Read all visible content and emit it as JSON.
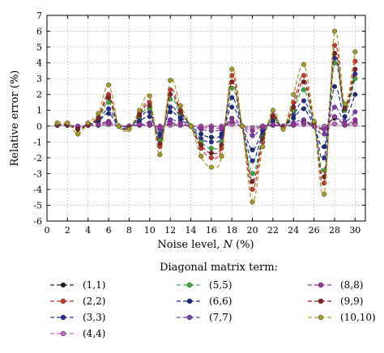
{
  "chart_data": {
    "type": "line",
    "xlabel_prefix": "Noise level, ",
    "xlabel_var": "N",
    "xlabel_suffix": " (%)",
    "ylabel": "Relative error (%)",
    "xlim": [
      0,
      31
    ],
    "ylim": [
      -6,
      7
    ],
    "xticks": [
      0,
      2,
      4,
      6,
      8,
      10,
      12,
      14,
      16,
      18,
      20,
      22,
      24,
      26,
      28,
      30
    ],
    "yticks": [
      -6,
      -5,
      -4,
      -3,
      -2,
      -1,
      0,
      1,
      2,
      3,
      4,
      5,
      6,
      7
    ],
    "legend_title": "Diagonal matrix term:",
    "x": [
      1,
      2,
      3,
      4,
      5,
      6,
      7,
      8,
      9,
      10,
      11,
      12,
      13,
      14,
      15,
      16,
      17,
      18,
      19,
      20,
      21,
      22,
      23,
      24,
      25,
      26,
      27,
      28,
      29,
      30
    ],
    "series": [
      {
        "name": "(1,1)",
        "color": "#222222",
        "values": [
          0.05,
          0.05,
          -0.05,
          0.05,
          0.05,
          0.1,
          0,
          0,
          0.05,
          0.05,
          0,
          0.1,
          0.05,
          0,
          0,
          0,
          0,
          0.2,
          0,
          -0.1,
          0,
          0.05,
          0,
          0.05,
          0.3,
          0,
          -0.1,
          0.5,
          0.1,
          0.2
        ]
      },
      {
        "name": "(2,2)",
        "color": "#d0302a",
        "values": [
          0.1,
          0.1,
          -0.2,
          0.1,
          0.6,
          2.0,
          0,
          -0.1,
          0.8,
          1.5,
          -1.3,
          2.3,
          1.0,
          0,
          -1.4,
          -2.0,
          -1.4,
          3.2,
          0,
          -4.0,
          -1.0,
          0.7,
          -0.1,
          1.5,
          3.2,
          0.2,
          -3.6,
          5.1,
          1.2,
          4.1
        ]
      },
      {
        "name": "(3,3)",
        "color": "#2a2aa0",
        "values": [
          0.1,
          0.1,
          -0.1,
          0.1,
          0.3,
          1.1,
          0,
          -0.1,
          0.5,
          0.9,
          -0.7,
          1.2,
          0.6,
          0,
          -0.8,
          -1.0,
          -0.7,
          1.8,
          0,
          -2.2,
          -0.5,
          0.4,
          0,
          0.7,
          1.6,
          0.1,
          -2.0,
          4.3,
          1.0,
          3.3
        ]
      },
      {
        "name": "(4,4)",
        "color": "#c060c0",
        "values": [
          0.05,
          0.05,
          0,
          0.05,
          0.05,
          0.1,
          0,
          0,
          0.05,
          0.05,
          0,
          0.05,
          0.05,
          0,
          0,
          0,
          0,
          0.1,
          0,
          -0.1,
          0,
          0.05,
          0,
          0.05,
          0.1,
          0,
          0,
          0.15,
          0.05,
          0.1
        ]
      },
      {
        "name": "(5,5)",
        "color": "#3aaa3a",
        "values": [
          0.1,
          0.1,
          -0.2,
          0.1,
          0.4,
          1.5,
          0,
          -0.1,
          0.6,
          1.1,
          -0.9,
          1.7,
          0.8,
          0,
          -1.0,
          -1.4,
          -1.0,
          2.4,
          0,
          -3.0,
          -0.7,
          0.5,
          -0.1,
          1.0,
          2.3,
          0.1,
          -2.8,
          4.0,
          1.0,
          3.0
        ]
      },
      {
        "name": "(6,6)",
        "color": "#1a2a7a",
        "values": [
          0.1,
          0.1,
          -0.1,
          0.1,
          0.3,
          0.8,
          0,
          0,
          0.3,
          0.6,
          -0.5,
          0.9,
          0.4,
          0,
          -0.5,
          -0.7,
          -0.5,
          1.2,
          0,
          -1.5,
          -0.3,
          0.3,
          0,
          0.5,
          1.1,
          0,
          -1.3,
          2.5,
          0.6,
          2.0
        ]
      },
      {
        "name": "(7,7)",
        "color": "#7a3ab0",
        "values": [
          0.05,
          0.05,
          -0.05,
          0.05,
          0.1,
          0.3,
          0,
          0,
          0.1,
          0.2,
          -0.2,
          0.4,
          0.2,
          0,
          -0.2,
          -0.3,
          -0.2,
          0.5,
          0,
          -0.6,
          -0.1,
          0.1,
          0,
          0.2,
          0.4,
          0,
          -0.5,
          1.2,
          0.3,
          0.9
        ]
      },
      {
        "name": "(8,8)",
        "color": "#a030a0",
        "values": [
          0.05,
          0.05,
          0,
          0.05,
          0.1,
          0.2,
          0,
          0,
          0.1,
          0.1,
          -0.1,
          0.2,
          0.1,
          0,
          -0.1,
          -0.1,
          -0.1,
          0.3,
          0,
          -0.3,
          0,
          0.1,
          0,
          0.1,
          0.2,
          0,
          -0.2,
          0.6,
          0.1,
          0.4
        ]
      },
      {
        "name": "(9,9)",
        "color": "#802020",
        "values": [
          0.1,
          0.1,
          -0.2,
          0.1,
          0.5,
          1.8,
          0,
          -0.1,
          0.7,
          1.3,
          -1.1,
          2.0,
          0.9,
          0,
          -1.2,
          -1.7,
          -1.2,
          2.8,
          0,
          -3.5,
          -0.8,
          0.6,
          -0.1,
          1.2,
          2.8,
          0.2,
          -3.2,
          4.6,
          1.1,
          3.6
        ]
      },
      {
        "name": "(10,10)",
        "color": "#a89a20",
        "values": [
          0.2,
          0.2,
          -0.5,
          0.2,
          0.8,
          2.6,
          0,
          -0.2,
          1.0,
          1.9,
          -1.8,
          2.9,
          1.3,
          0,
          -1.9,
          -2.6,
          -1.9,
          3.6,
          0,
          -4.8,
          -1.3,
          1.0,
          -0.2,
          2.0,
          3.9,
          0.3,
          -4.3,
          6.0,
          1.4,
          4.7
        ]
      }
    ]
  }
}
